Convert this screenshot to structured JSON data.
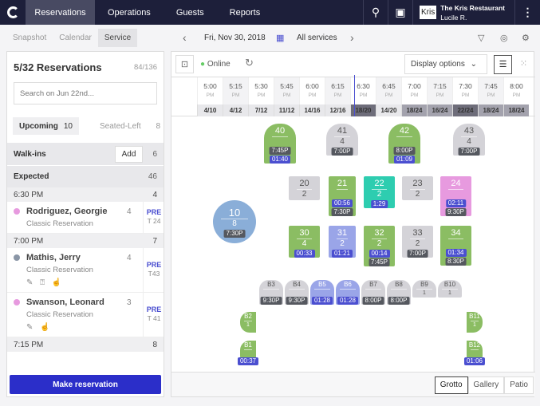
{
  "topbar": {
    "nav": [
      "Reservations",
      "Operations",
      "Guests",
      "Reports"
    ],
    "restaurant": "The Kris Restaurant",
    "user": "Lucile R.",
    "logo_text": "Kris"
  },
  "subnav": {
    "tabs": [
      "Snapshot",
      "Calendar",
      "Service"
    ],
    "date": "Fri, Nov 30, 2018",
    "service": "All services"
  },
  "left": {
    "title": "5/32 Reservations",
    "count": "84/136",
    "search_placeholder": "Search on Jun 22nd...",
    "upcoming": "Upcoming",
    "upcoming_count": "10",
    "seated_left": "Seated-Left",
    "seated_count": "8",
    "walkins": "Walk-ins",
    "add": "Add",
    "walkins_count": "6",
    "expected": "Expected",
    "expected_count": "46",
    "groups": [
      {
        "time": "6:30 PM",
        "count": "4",
        "items": [
          {
            "name": "Rodriguez, Georgie",
            "type": "Classic Reservation",
            "covers": "4",
            "status": "PRE",
            "table": "T 24",
            "dot": "#e79adf",
            "icons": ""
          }
        ]
      },
      {
        "time": "7:00 PM",
        "count": "7",
        "items": [
          {
            "name": "Mathis, Jerry",
            "type": "Classic Reservation",
            "covers": "4",
            "status": "PRE",
            "table": "T43",
            "dot": "#8a96a6",
            "icons": "✎ ⍰ ☝"
          },
          {
            "name": "Swanson, Leonard",
            "type": "Classic Reservation",
            "covers": "3",
            "status": "PRE",
            "table": "T 41",
            "dot": "#e79adf",
            "icons": "✎ ☝"
          }
        ]
      },
      {
        "time": "7:15 PM",
        "count": "8",
        "items": []
      }
    ],
    "make": "Make reservation"
  },
  "floor": {
    "online": "Online",
    "display_options": "Display options",
    "slots": [
      {
        "t": "5:00",
        "p": "PM",
        "c": "4/10"
      },
      {
        "t": "5:15",
        "p": "PM",
        "c": "4/12"
      },
      {
        "t": "5:30",
        "p": "PM",
        "c": "7/12"
      },
      {
        "t": "5:45",
        "p": "PM",
        "c": "11/12"
      },
      {
        "t": "6:00",
        "p": "PM",
        "c": "14/16"
      },
      {
        "t": "6:15",
        "p": "PM",
        "c": "12/16"
      },
      {
        "t": "6:30",
        "p": "PM",
        "c": "18/20"
      },
      {
        "t": "6:45",
        "p": "PM",
        "c": "14/20"
      },
      {
        "t": "7:00",
        "p": "PM",
        "c": "18/24"
      },
      {
        "t": "7:15",
        "p": "PM",
        "c": "16/24"
      },
      {
        "t": "7:30",
        "p": "PM",
        "c": "22/24"
      },
      {
        "t": "7:45",
        "p": "PM",
        "c": "18/24"
      },
      {
        "t": "8:00",
        "p": "PM",
        "c": "18/24"
      }
    ],
    "tables": [
      {
        "id": "40",
        "covers": "",
        "color": "#8bbd63",
        "badges": [
          [
            "7:45P",
            "d"
          ],
          [
            "01:40",
            "b"
          ]
        ]
      },
      {
        "id": "41",
        "covers": "4",
        "color": "#d4d3d8",
        "badges": [
          [
            "7:00P",
            "d"
          ]
        ]
      },
      {
        "id": "42",
        "covers": "",
        "color": "#8bbd63",
        "badges": [
          [
            "8:00P",
            "d"
          ],
          [
            "01:09",
            "b"
          ]
        ]
      },
      {
        "id": "43",
        "covers": "4",
        "color": "#d4d3d8",
        "badges": [
          [
            "7:00P",
            "d"
          ]
        ]
      },
      {
        "id": "10",
        "covers": "8",
        "color": "#8aaed8",
        "badges": [
          [
            "7:30P",
            "d"
          ]
        ]
      },
      {
        "id": "20",
        "covers": "2",
        "color": "#d4d3d8",
        "badges": []
      },
      {
        "id": "21",
        "covers": "",
        "color": "#8bbd63",
        "badges": [
          [
            "00:56",
            "b"
          ],
          [
            "7:30P",
            "d"
          ]
        ]
      },
      {
        "id": "22",
        "covers": "2",
        "color": "#2ecdb0",
        "badges": [
          [
            "1:29",
            "b"
          ]
        ]
      },
      {
        "id": "23",
        "covers": "2",
        "color": "#d4d3d8",
        "badges": []
      },
      {
        "id": "24",
        "covers": "",
        "color": "#e79adf",
        "badges": [
          [
            "02:11",
            "b"
          ],
          [
            "9:30P",
            "d"
          ]
        ]
      },
      {
        "id": "30",
        "covers": "4",
        "color": "#8bbd63",
        "badges": [
          [
            "00:33",
            "b"
          ]
        ]
      },
      {
        "id": "31",
        "covers": "2",
        "color": "#9aa5e8",
        "badges": [
          [
            "01:21",
            "b"
          ]
        ]
      },
      {
        "id": "32",
        "covers": "2",
        "color": "#8bbd63",
        "badges": [
          [
            "00:14",
            "b"
          ],
          [
            "7:45P",
            "d"
          ]
        ]
      },
      {
        "id": "33",
        "covers": "2",
        "color": "#d4d3d8",
        "badges": [
          [
            "7:00P",
            "d"
          ]
        ]
      },
      {
        "id": "34",
        "covers": "",
        "color": "#8bbd63",
        "badges": [
          [
            "01:34",
            "b"
          ],
          [
            "8:30P",
            "d"
          ]
        ]
      },
      {
        "id": "B3",
        "covers": "",
        "color": "#d4d3d8",
        "badges": [
          [
            "9:30P",
            "d"
          ]
        ]
      },
      {
        "id": "B4",
        "covers": "",
        "color": "#d4d3d8",
        "badges": [
          [
            "9:30P",
            "d"
          ]
        ]
      },
      {
        "id": "B5",
        "covers": "",
        "color": "#9aa5e8",
        "badges": [
          [
            "01:28",
            "b"
          ]
        ]
      },
      {
        "id": "B6",
        "covers": "",
        "color": "#9aa5e8",
        "badges": [
          [
            "01:28",
            "b"
          ]
        ]
      },
      {
        "id": "B7",
        "covers": "",
        "color": "#d4d3d8",
        "badges": [
          [
            "8:00P",
            "d"
          ]
        ]
      },
      {
        "id": "B8",
        "covers": "",
        "color": "#d4d3d8",
        "badges": [
          [
            "8:00P",
            "d"
          ]
        ]
      },
      {
        "id": "B9",
        "covers": "1",
        "color": "#d4d3d8",
        "badges": []
      },
      {
        "id": "B10",
        "covers": "1",
        "color": "#d4d3d8",
        "badges": []
      },
      {
        "id": "B2",
        "covers": "1",
        "color": "#8bbd63",
        "badges": []
      },
      {
        "id": "B1",
        "covers": "",
        "color": "#8bbd63",
        "badges": [
          [
            "00:37",
            "b"
          ]
        ]
      },
      {
        "id": "B11",
        "covers": "1",
        "color": "#8bbd63",
        "badges": []
      },
      {
        "id": "B12",
        "covers": "",
        "color": "#8bbd63",
        "badges": [
          [
            "01:06",
            "b"
          ]
        ]
      }
    ],
    "rooms": [
      "Grotto",
      "Gallery",
      "Patio"
    ],
    "active_room": "Grotto"
  },
  "colors": {
    "accent": "#2b2ec9",
    "badge_dark": "#55585f",
    "badge_blue": "#4b4fd0",
    "nav": "#1d1f3a"
  }
}
